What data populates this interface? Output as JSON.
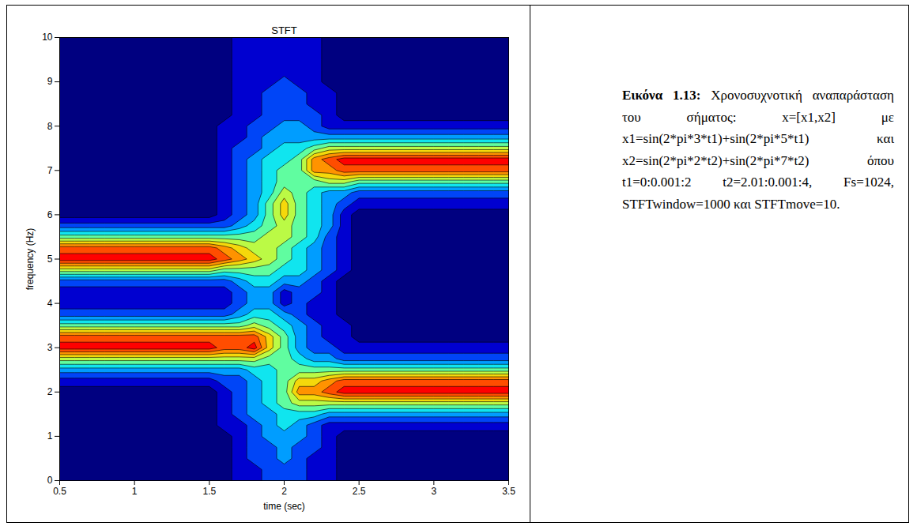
{
  "chart_data": {
    "type": "contour",
    "title": "STFT",
    "x_label": "time (sec)",
    "y_label": "frequency (Hz)",
    "xlim": [
      0.5,
      3.5
    ],
    "xticks": [
      0.5,
      1,
      1.5,
      2,
      2.5,
      3,
      3.5
    ],
    "ylim": [
      0,
      10
    ],
    "yticks": [
      0,
      1,
      2,
      3,
      4,
      5,
      6,
      7,
      8,
      9,
      10
    ],
    "zlim": [
      0,
      10
    ],
    "x": [
      0.5,
      0.6,
      0.7,
      0.8,
      0.9,
      1.0,
      1.1,
      1.2,
      1.3,
      1.4,
      1.5,
      1.6,
      1.7,
      1.8,
      1.9,
      2.0,
      2.1,
      2.2,
      2.3,
      2.4,
      2.5,
      2.6,
      2.7,
      2.8,
      2.9,
      3.0,
      3.1,
      3.2,
      3.3,
      3.4,
      3.5
    ],
    "y": [
      0,
      0.25,
      0.5,
      0.75,
      1,
      1.25,
      1.5,
      1.75,
      2,
      2.25,
      2.5,
      2.75,
      3,
      3.25,
      3.5,
      3.75,
      4,
      4.25,
      4.5,
      4.75,
      5,
      5.25,
      5.5,
      5.75,
      6,
      6.25,
      6.5,
      6.75,
      7,
      7.25,
      7.5,
      7.75,
      8,
      8.25,
      8.5,
      8.75,
      9,
      9.25,
      9.5,
      9.75,
      10
    ],
    "z": [
      [
        0,
        0,
        0,
        0,
        0,
        0,
        0,
        0,
        0,
        0,
        0,
        0,
        1,
        1,
        2,
        2,
        2,
        1,
        1,
        0,
        0,
        0,
        0,
        0,
        0,
        0,
        0,
        0,
        0,
        0,
        0
      ],
      [
        0,
        0,
        0,
        0,
        0,
        0,
        0,
        0,
        0,
        0,
        0,
        0,
        1,
        1,
        2,
        2,
        2,
        1,
        1,
        0,
        0,
        0,
        0,
        0,
        0,
        0,
        0,
        0,
        0,
        0,
        0
      ],
      [
        0,
        0,
        0,
        0,
        0,
        0,
        0,
        0,
        0,
        0,
        0,
        0,
        1,
        2,
        2,
        3,
        2,
        1,
        1,
        0,
        0,
        0,
        0,
        0,
        0,
        0,
        0,
        0,
        0,
        0,
        0
      ],
      [
        0,
        0,
        0,
        0,
        0,
        0,
        0,
        0,
        0,
        0,
        0,
        0,
        1,
        2,
        2,
        3,
        2,
        2,
        1,
        0,
        0,
        0,
        0,
        0,
        0,
        0,
        0,
        0,
        0,
        0,
        0
      ],
      [
        0,
        0,
        0,
        0,
        0,
        0,
        0,
        0,
        0,
        0,
        0,
        0,
        1,
        2,
        3,
        3,
        3,
        2,
        1,
        0,
        0,
        0,
        0,
        0,
        0,
        0,
        0,
        0,
        0,
        0,
        0
      ],
      [
        0,
        0,
        0,
        0,
        0,
        0,
        0,
        0,
        0,
        0,
        0,
        1,
        1,
        2,
        3,
        4,
        3,
        2,
        1,
        1,
        1,
        1,
        1,
        1,
        1,
        1,
        1,
        1,
        1,
        1,
        1
      ],
      [
        0,
        0,
        0,
        0,
        0,
        0,
        0,
        0,
        0,
        0,
        0,
        1,
        2,
        3,
        3,
        4,
        4,
        4,
        3,
        3,
        3,
        3,
        3,
        3,
        3,
        3,
        3,
        3,
        3,
        3,
        3
      ],
      [
        0,
        0,
        0,
        0,
        0,
        0,
        0,
        0,
        0,
        0,
        0,
        1,
        2,
        3,
        4,
        5,
        6,
        6,
        6,
        6,
        6,
        6,
        6,
        6,
        6,
        6,
        6,
        6,
        6,
        6,
        6
      ],
      [
        0,
        0,
        0,
        0,
        0,
        0,
        0,
        0,
        0,
        0,
        0,
        1,
        2,
        3,
        4,
        5,
        8,
        8,
        9,
        10,
        10,
        10,
        10,
        10,
        10,
        10,
        10,
        10,
        10,
        10,
        10
      ],
      [
        1,
        1,
        1,
        1,
        1,
        1,
        1,
        1,
        1,
        1,
        1,
        2,
        2,
        3,
        4,
        5,
        7,
        7,
        8,
        9,
        9,
        9,
        9,
        9,
        9,
        9,
        9,
        9,
        9,
        9,
        9
      ],
      [
        3,
        3,
        3,
        3,
        3,
        3,
        3,
        3,
        3,
        3,
        3,
        3,
        3,
        4,
        4,
        5,
        5,
        5,
        5,
        5,
        5,
        5,
        5,
        5,
        5,
        5,
        5,
        5,
        5,
        5,
        5
      ],
      [
        6,
        6,
        6,
        6,
        6,
        6,
        6,
        6,
        6,
        6,
        6,
        6,
        6,
        6,
        5,
        5,
        4,
        3,
        3,
        2,
        2,
        2,
        2,
        2,
        2,
        2,
        2,
        2,
        2,
        2,
        2
      ],
      [
        10,
        10,
        10,
        10,
        10,
        10,
        10,
        10,
        10,
        10,
        10,
        9,
        9,
        10,
        7,
        5,
        3,
        2,
        2,
        1,
        1,
        1,
        1,
        1,
        1,
        1,
        1,
        1,
        1,
        1,
        1
      ],
      [
        9,
        9,
        9,
        9,
        9,
        9,
        9,
        9,
        9,
        9,
        9,
        9,
        9,
        9,
        7,
        5,
        3,
        2,
        1,
        1,
        0,
        0,
        0,
        0,
        0,
        0,
        0,
        0,
        0,
        0,
        0
      ],
      [
        5,
        5,
        5,
        5,
        5,
        5,
        5,
        5,
        5,
        5,
        5,
        5,
        5,
        6,
        5,
        4,
        3,
        2,
        1,
        1,
        0,
        0,
        0,
        0,
        0,
        0,
        0,
        0,
        0,
        0,
        0
      ],
      [
        2,
        2,
        2,
        2,
        2,
        2,
        2,
        2,
        2,
        2,
        2,
        2,
        3,
        4,
        4,
        3,
        2,
        1,
        1,
        0,
        0,
        0,
        0,
        0,
        0,
        0,
        0,
        0,
        0,
        0,
        0
      ],
      [
        1,
        1,
        1,
        1,
        1,
        1,
        1,
        1,
        1,
        1,
        1,
        1,
        2,
        3,
        3,
        1,
        2,
        1,
        1,
        0,
        0,
        0,
        0,
        0,
        0,
        0,
        0,
        0,
        0,
        0,
        0
      ],
      [
        1,
        1,
        1,
        1,
        1,
        1,
        1,
        1,
        1,
        1,
        1,
        1,
        2,
        3,
        3,
        1,
        2,
        2,
        1,
        0,
        0,
        0,
        0,
        0,
        0,
        0,
        0,
        0,
        0,
        0,
        0
      ],
      [
        2,
        2,
        2,
        2,
        2,
        2,
        2,
        2,
        2,
        2,
        2,
        2,
        3,
        4,
        4,
        3,
        3,
        2,
        1,
        0,
        0,
        0,
        0,
        0,
        0,
        0,
        0,
        0,
        0,
        0,
        0
      ],
      [
        6,
        6,
        6,
        6,
        6,
        6,
        6,
        6,
        6,
        6,
        6,
        5,
        5,
        5,
        5,
        4,
        4,
        3,
        2,
        1,
        0,
        0,
        0,
        0,
        0,
        0,
        0,
        0,
        0,
        0,
        0
      ],
      [
        10,
        10,
        10,
        10,
        10,
        10,
        10,
        10,
        10,
        10,
        10,
        9,
        8,
        7,
        6,
        5,
        4,
        3,
        2,
        1,
        0,
        0,
        0,
        0,
        0,
        0,
        0,
        0,
        0,
        0,
        0
      ],
      [
        9,
        9,
        9,
        9,
        9,
        9,
        9,
        9,
        9,
        9,
        9,
        8,
        7,
        6,
        6,
        5,
        4,
        3,
        2,
        1,
        0,
        0,
        0,
        0,
        0,
        0,
        0,
        0,
        0,
        0,
        0
      ],
      [
        5,
        5,
        5,
        5,
        5,
        5,
        5,
        5,
        5,
        5,
        5,
        5,
        5,
        5,
        6,
        6,
        5,
        4,
        2,
        1,
        0,
        0,
        0,
        0,
        0,
        0,
        0,
        0,
        0,
        0,
        0
      ],
      [
        2,
        2,
        2,
        2,
        2,
        2,
        2,
        2,
        2,
        2,
        2,
        2,
        3,
        4,
        5,
        6,
        5,
        4,
        3,
        1,
        0,
        0,
        0,
        0,
        0,
        0,
        0,
        0,
        0,
        0,
        0
      ],
      [
        0,
        0,
        0,
        0,
        0,
        0,
        0,
        0,
        0,
        0,
        0,
        1,
        2,
        3,
        5,
        7,
        5,
        4,
        3,
        1,
        0,
        0,
        0,
        0,
        0,
        0,
        0,
        0,
        0,
        0,
        0
      ],
      [
        0,
        0,
        0,
        0,
        0,
        0,
        0,
        0,
        0,
        0,
        0,
        1,
        2,
        3,
        5,
        7,
        5,
        4,
        3,
        2,
        1,
        1,
        1,
        1,
        1,
        1,
        1,
        1,
        1,
        1,
        1
      ],
      [
        0,
        0,
        0,
        0,
        0,
        0,
        0,
        0,
        0,
        0,
        0,
        1,
        2,
        3,
        4,
        6,
        5,
        4,
        3,
        3,
        2,
        2,
        2,
        2,
        2,
        2,
        2,
        2,
        2,
        2,
        2
      ],
      [
        0,
        0,
        0,
        0,
        0,
        0,
        0,
        0,
        0,
        0,
        0,
        1,
        2,
        3,
        4,
        5,
        5,
        5,
        6,
        6,
        5,
        5,
        5,
        5,
        5,
        5,
        5,
        5,
        5,
        5,
        5
      ],
      [
        0,
        0,
        0,
        0,
        0,
        0,
        0,
        0,
        0,
        0,
        0,
        1,
        2,
        3,
        4,
        5,
        5,
        8,
        8,
        9,
        9,
        9,
        9,
        9,
        9,
        9,
        9,
        9,
        9,
        9,
        9
      ],
      [
        0,
        0,
        0,
        0,
        0,
        0,
        0,
        0,
        0,
        0,
        0,
        1,
        2,
        3,
        4,
        4,
        5,
        8,
        9,
        10,
        10,
        10,
        10,
        10,
        10,
        10,
        10,
        10,
        10,
        10,
        10
      ],
      [
        0,
        0,
        0,
        0,
        0,
        0,
        0,
        0,
        0,
        0,
        0,
        1,
        2,
        2,
        3,
        4,
        4,
        5,
        6,
        6,
        6,
        6,
        6,
        6,
        6,
        6,
        6,
        6,
        6,
        6,
        6
      ],
      [
        0,
        0,
        0,
        0,
        0,
        0,
        0,
        0,
        0,
        0,
        0,
        1,
        1,
        2,
        3,
        3,
        3,
        3,
        3,
        3,
        3,
        3,
        3,
        3,
        3,
        3,
        3,
        3,
        3,
        3,
        3
      ],
      [
        0,
        0,
        0,
        0,
        0,
        0,
        0,
        0,
        0,
        0,
        0,
        1,
        1,
        2,
        2,
        3,
        3,
        2,
        1,
        1,
        1,
        1,
        1,
        1,
        1,
        1,
        1,
        1,
        1,
        1,
        1
      ],
      [
        0,
        0,
        0,
        0,
        0,
        0,
        0,
        0,
        0,
        0,
        0,
        0,
        1,
        1,
        2,
        2,
        2,
        2,
        1,
        0,
        0,
        0,
        0,
        0,
        0,
        0,
        0,
        0,
        0,
        0,
        0
      ],
      [
        0,
        0,
        0,
        0,
        0,
        0,
        0,
        0,
        0,
        0,
        0,
        0,
        1,
        1,
        2,
        2,
        2,
        1,
        1,
        0,
        0,
        0,
        0,
        0,
        0,
        0,
        0,
        0,
        0,
        0,
        0
      ],
      [
        0,
        0,
        0,
        0,
        0,
        0,
        0,
        0,
        0,
        0,
        0,
        0,
        1,
        1,
        2,
        2,
        2,
        1,
        1,
        0,
        0,
        0,
        0,
        0,
        0,
        0,
        0,
        0,
        0,
        0,
        0
      ],
      [
        0,
        0,
        0,
        0,
        0,
        0,
        0,
        0,
        0,
        0,
        0,
        0,
        1,
        1,
        1,
        2,
        1,
        1,
        0,
        0,
        0,
        0,
        0,
        0,
        0,
        0,
        0,
        0,
        0,
        0,
        0
      ],
      [
        0,
        0,
        0,
        0,
        0,
        0,
        0,
        0,
        0,
        0,
        0,
        0,
        1,
        1,
        1,
        1,
        1,
        1,
        0,
        0,
        0,
        0,
        0,
        0,
        0,
        0,
        0,
        0,
        0,
        0,
        0
      ],
      [
        0,
        0,
        0,
        0,
        0,
        0,
        0,
        0,
        0,
        0,
        0,
        0,
        1,
        1,
        1,
        1,
        1,
        1,
        0,
        0,
        0,
        0,
        0,
        0,
        0,
        0,
        0,
        0,
        0,
        0,
        0
      ],
      [
        0,
        0,
        0,
        0,
        0,
        0,
        0,
        0,
        0,
        0,
        0,
        0,
        1,
        1,
        1,
        1,
        1,
        1,
        0,
        0,
        0,
        0,
        0,
        0,
        0,
        0,
        0,
        0,
        0,
        0,
        0
      ],
      [
        0,
        0,
        0,
        0,
        0,
        0,
        0,
        0,
        0,
        0,
        0,
        0,
        1,
        1,
        1,
        1,
        1,
        1,
        0,
        0,
        0,
        0,
        0,
        0,
        0,
        0,
        0,
        0,
        0,
        0,
        0
      ]
    ]
  },
  "caption": {
    "label": "Εικόνα 1.13:",
    "text": "Χρονοσυχνοτική αναπαράσταση του σήματος: x=[x1,x2] με x1=sin(2*pi*3*t1)+sin(2*pi*5*t1) και x2=sin(2*pi*2*t2)+sin(2*pi*7*t2) όπου t1=0:0.001:2 t2=2.01:0.001:4, Fs=1024, STFTwindow=1000 και STFTmove=10."
  }
}
